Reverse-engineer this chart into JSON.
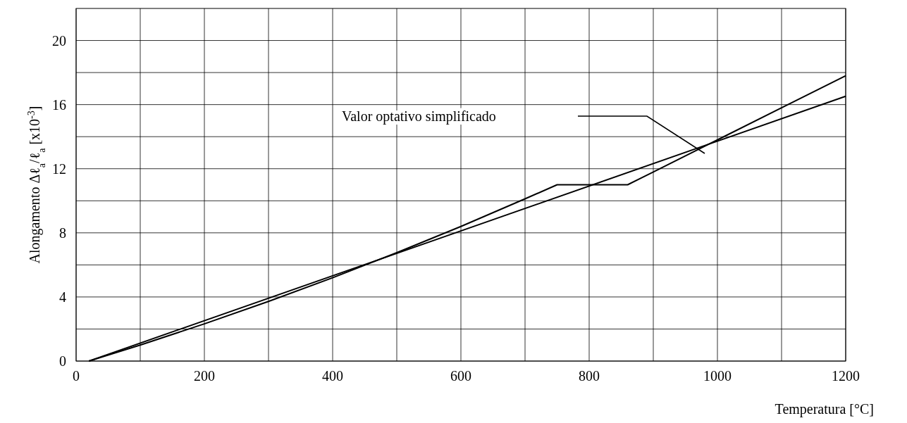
{
  "chart_data": {
    "type": "line",
    "xlabel": "Temperatura [°C]",
    "ylabel": "Alongamento Δℓ$_{a}$/ℓ$_{a}$ [x10$^{-3}$]",
    "series": [
      {
        "color": "#000000",
        "x": [
          20,
          100,
          200,
          300,
          400,
          500,
          600,
          700,
          750,
          860,
          900,
          1000,
          1100,
          1200
        ],
        "values": [
          0,
          1.0,
          2.32,
          3.72,
          5.2,
          6.76,
          8.4,
          10.12,
          11.0,
          11.0,
          11.8,
          13.8,
          15.8,
          17.8
        ]
      },
      {
        "color": "#000000",
        "x": [
          20,
          1200
        ],
        "values": [
          0,
          16.52
        ]
      }
    ],
    "annotations": [
      "Valor optativo simplificado"
    ],
    "xlim": [
      0,
      1200
    ],
    "ylim": [
      0,
      22
    ],
    "xticks": [
      0,
      {
        "value": 100,
        "label": null
      },
      200,
      {
        "value": 300,
        "label": null
      },
      400,
      {
        "value": 500,
        "label": null
      },
      600,
      {
        "value": 700,
        "label": null
      },
      800,
      {
        "value": 900,
        "label": null
      },
      1000,
      {
        "value": 1100,
        "label": null
      },
      1200
    ],
    "yticks": [
      0,
      {
        "value": 2,
        "label": null
      },
      4,
      {
        "value": 6,
        "label": null
      },
      8,
      {
        "value": 10,
        "label": null
      },
      12,
      {
        "value": 14,
        "label": null
      },
      16,
      {
        "value": 18,
        "label": null
      },
      20
    ],
    "grid": true,
    "marker": "none",
    "line_style": "solid"
  }
}
